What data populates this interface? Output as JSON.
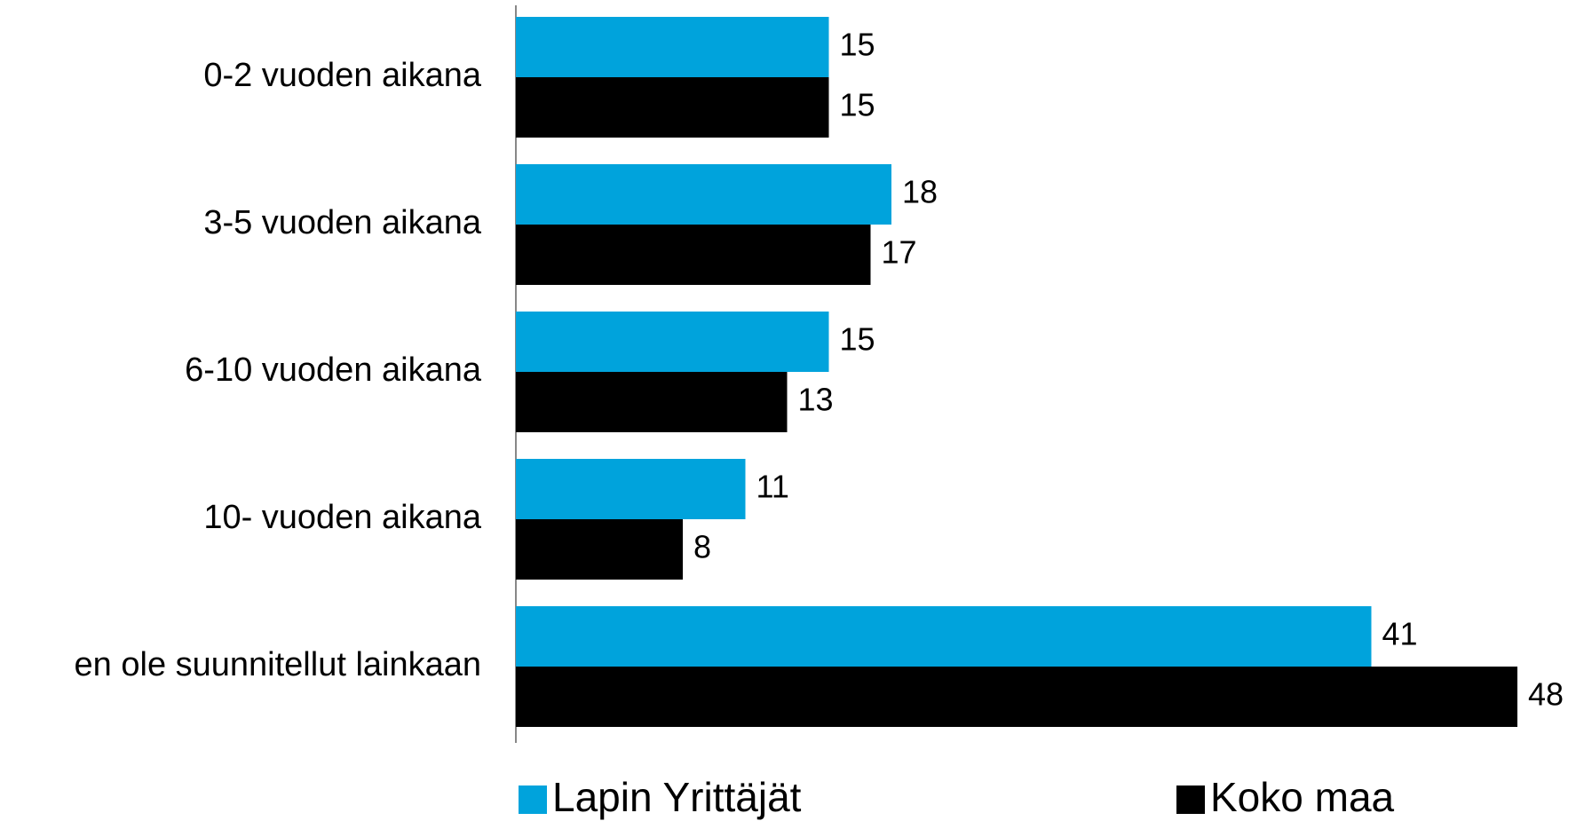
{
  "chart_data": {
    "type": "bar",
    "orientation": "horizontal",
    "categories": [
      "0-2 vuoden aikana",
      "3-5 vuoden aikana",
      "6-10 vuoden aikana",
      "10- vuoden aikana",
      "en ole suunnitellut  lainkaan"
    ],
    "series": [
      {
        "name": "Lapin Yrittäjät",
        "color": "#00a3dc",
        "values": [
          15,
          18,
          15,
          11,
          41
        ]
      },
      {
        "name": "Koko maa",
        "color": "#000000",
        "values": [
          15,
          17,
          13,
          8,
          48
        ]
      }
    ],
    "legend": "bottom"
  }
}
